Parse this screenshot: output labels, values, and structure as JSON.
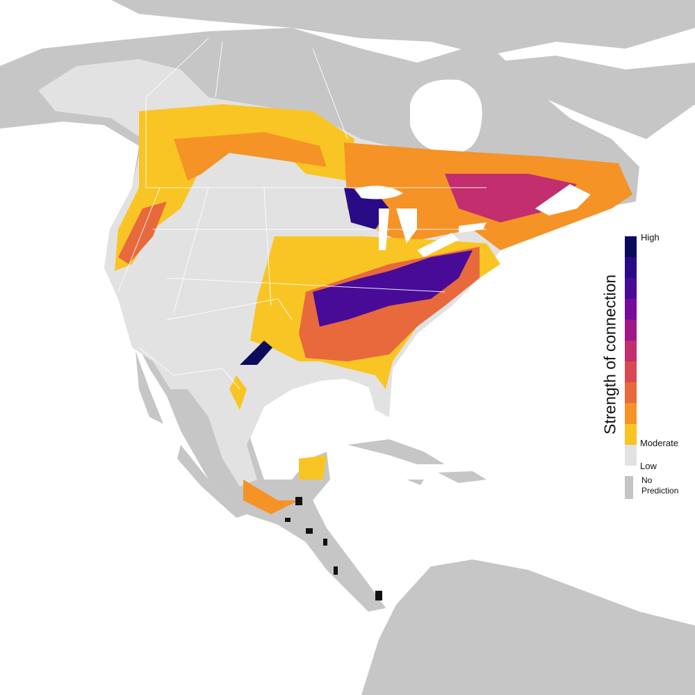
{
  "legend": {
    "title": "Strength of connection",
    "high_label": "High",
    "moderate_label": "Moderate",
    "low_label": "Low",
    "no_prediction_label_1": "No",
    "no_prediction_label_2": "Prediction",
    "scale_colors": [
      "#0b0a5c",
      "#2a0b86",
      "#480b98",
      "#760b9c",
      "#a0178a",
      "#c22e6e",
      "#d94a55",
      "#e8693c",
      "#f59327",
      "#f9c524"
    ],
    "low_color": "#e2e2e2",
    "no_prediction_color": "#c4c4c4"
  },
  "colors": {
    "no_prediction_land": "#c6c6c6",
    "low_land": "#e2e2e2",
    "water": "#ffffff",
    "border": "#ffffff",
    "unknown": "#111111"
  }
}
